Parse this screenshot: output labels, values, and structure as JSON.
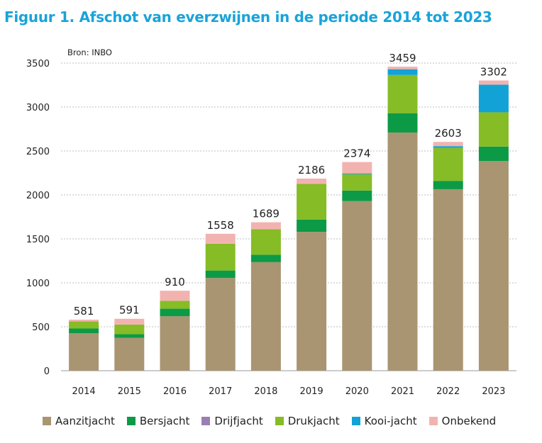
{
  "chart_data": {
    "type": "stacked-bar",
    "title": "Figuur 1. Afschot van everzwijnen in de periode 2014 tot 2023",
    "source": "Bron: INBO",
    "xlabel": "",
    "ylabel": "",
    "ylim": [
      0,
      3500
    ],
    "yticks": [
      0,
      500,
      1000,
      1500,
      2000,
      2500,
      3000,
      3500
    ],
    "grid": true,
    "legend_position": "bottom",
    "categories": [
      "2014",
      "2015",
      "2016",
      "2017",
      "2018",
      "2019",
      "2020",
      "2021",
      "2022",
      "2023"
    ],
    "totals": [
      581,
      591,
      910,
      1558,
      1689,
      2186,
      2374,
      3459,
      2603,
      3302
    ],
    "series": [
      {
        "name": "Aanzitjacht",
        "color": "#a99572",
        "values": [
          425,
          375,
          620,
          1055,
          1235,
          1580,
          1930,
          2710,
          2065,
          2385
        ]
      },
      {
        "name": "Bersjacht",
        "color": "#0c9a46",
        "values": [
          55,
          40,
          85,
          85,
          85,
          140,
          120,
          220,
          95,
          165
        ]
      },
      {
        "name": "Drijfjacht",
        "color": "#9b7fb3",
        "values": [
          0,
          0,
          0,
          0,
          0,
          0,
          0,
          0,
          0,
          0
        ]
      },
      {
        "name": "Drukjacht",
        "color": "#86bc25",
        "values": [
          80,
          110,
          90,
          305,
          290,
          405,
          185,
          435,
          375,
          390
        ]
      },
      {
        "name": "Kooi-jacht",
        "color": "#13a2d6",
        "values": [
          0,
          0,
          0,
          0,
          0,
          0,
          10,
          65,
          20,
          315
        ]
      },
      {
        "name": "Onbekend",
        "color": "#f2b3b0",
        "values": [
          21,
          66,
          115,
          113,
          79,
          61,
          129,
          29,
          48,
          47
        ]
      }
    ]
  }
}
